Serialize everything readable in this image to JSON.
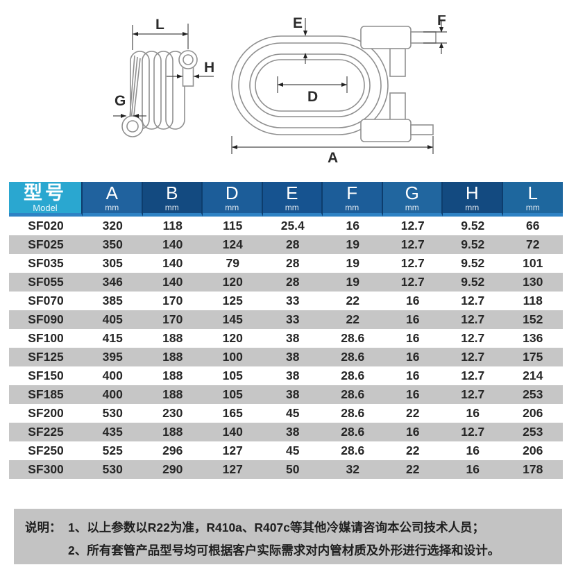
{
  "diagram": {
    "side_labels": {
      "L": "L",
      "H": "H",
      "G": "G"
    },
    "top_labels": {
      "E": "E",
      "F": "F",
      "D": "D",
      "A": "A"
    }
  },
  "table": {
    "model_header": {
      "zh": "型号",
      "en": "Model"
    },
    "columns": [
      {
        "letter": "A",
        "unit": "mm",
        "color": "#20629e"
      },
      {
        "letter": "B",
        "unit": "mm",
        "color": "#134a80"
      },
      {
        "letter": "D",
        "unit": "mm",
        "color": "#1c5d99"
      },
      {
        "letter": "E",
        "unit": "mm",
        "color": "#165390"
      },
      {
        "letter": "F",
        "unit": "mm",
        "color": "#1c5d99"
      },
      {
        "letter": "G",
        "unit": "mm",
        "color": "#21669f"
      },
      {
        "letter": "H",
        "unit": "mm",
        "color": "#134a80"
      },
      {
        "letter": "L",
        "unit": "mm",
        "color": "#1e679e"
      }
    ],
    "rows": [
      {
        "model": "SF020",
        "values": [
          "320",
          "118",
          "115",
          "25.4",
          "16",
          "12.7",
          "9.52",
          "66"
        ]
      },
      {
        "model": "SF025",
        "values": [
          "350",
          "140",
          "124",
          "28",
          "19",
          "12.7",
          "9.52",
          "72"
        ]
      },
      {
        "model": "SF035",
        "values": [
          "305",
          "140",
          "79",
          "28",
          "19",
          "12.7",
          "9.52",
          "101"
        ]
      },
      {
        "model": "SF055",
        "values": [
          "346",
          "140",
          "120",
          "28",
          "19",
          "12.7",
          "9.52",
          "130"
        ]
      },
      {
        "model": "SF070",
        "values": [
          "385",
          "170",
          "125",
          "33",
          "22",
          "16",
          "12.7",
          "118"
        ]
      },
      {
        "model": "SF090",
        "values": [
          "405",
          "170",
          "145",
          "33",
          "22",
          "16",
          "12.7",
          "152"
        ]
      },
      {
        "model": "SF100",
        "values": [
          "415",
          "188",
          "120",
          "38",
          "28.6",
          "16",
          "12.7",
          "136"
        ]
      },
      {
        "model": "SF125",
        "values": [
          "395",
          "188",
          "100",
          "38",
          "28.6",
          "16",
          "12.7",
          "175"
        ]
      },
      {
        "model": "SF150",
        "values": [
          "400",
          "188",
          "105",
          "38",
          "28.6",
          "16",
          "12.7",
          "214"
        ]
      },
      {
        "model": "SF185",
        "values": [
          "400",
          "188",
          "105",
          "38",
          "28.6",
          "16",
          "12.7",
          "253"
        ]
      },
      {
        "model": "SF200",
        "values": [
          "530",
          "230",
          "165",
          "45",
          "28.6",
          "22",
          "16",
          "206"
        ]
      },
      {
        "model": "SF225",
        "values": [
          "435",
          "188",
          "140",
          "38",
          "28.6",
          "16",
          "12.7",
          "253"
        ]
      },
      {
        "model": "SF250",
        "values": [
          "525",
          "296",
          "127",
          "45",
          "28.6",
          "22",
          "16",
          "206"
        ]
      },
      {
        "model": "SF300",
        "values": [
          "530",
          "290",
          "127",
          "50",
          "32",
          "22",
          "16",
          "178"
        ]
      }
    ]
  },
  "notes": {
    "label": "说明：",
    "item1": "1、以上参数以R22为准，R410a、R407c等其他冷媒请咨询本公司技术人员；",
    "item2": "2、所有套管产品型号均可根据客户实际需求对内管材质及外形进行选择和设计。"
  },
  "colors": {
    "header_model_bg": "#2aa7d0",
    "header_strip": "#2e82c4",
    "header_divider": "#0d3d6d",
    "row_alt_bg": "#c6c6c6",
    "notes_bg": "#c3c3c3",
    "text": "#262626"
  }
}
